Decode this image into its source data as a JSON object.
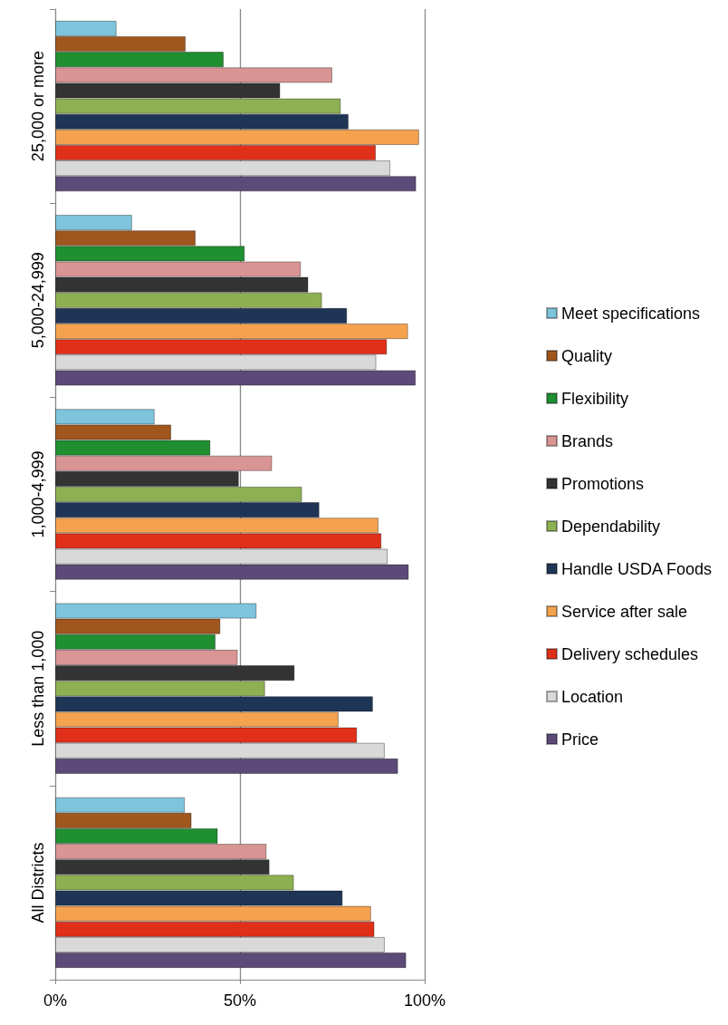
{
  "chart_data": {
    "type": "bar",
    "orientation": "horizontal",
    "categories": [
      "25,000 or more",
      "5,000-24,999",
      "1,000-4,999",
      "Less than 1,000",
      "All Districts"
    ],
    "xlim": [
      0,
      100
    ],
    "xticks": [
      {
        "value": 0,
        "label": "0%"
      },
      {
        "value": 50,
        "label": "50%"
      },
      {
        "value": 100,
        "label": "100%"
      }
    ],
    "grid": "x",
    "legend": "right",
    "series": [
      {
        "name": "Meet specifications",
        "color": "#7ec4dc",
        "values": [
          16.6,
          20.8,
          26.9,
          54.5,
          35.1
        ]
      },
      {
        "name": "Quality",
        "color": "#a0561c",
        "values": [
          35.3,
          38,
          31.4,
          44.7,
          36.9
        ]
      },
      {
        "name": "Flexibility",
        "color": "#1f8f2f",
        "values": [
          45.6,
          51.3,
          42,
          43.4,
          44
        ]
      },
      {
        "name": "Brands",
        "color": "#d99494",
        "values": [
          75,
          66.5,
          58.7,
          49.4,
          57.2
        ]
      },
      {
        "name": "Promotions",
        "color": "#333333",
        "values": [
          60.9,
          68.5,
          49.7,
          64.8,
          58
        ]
      },
      {
        "name": "Dependability",
        "color": "#8db152",
        "values": [
          77.3,
          72.2,
          66.8,
          56.8,
          64.6
        ]
      },
      {
        "name": "Handle USDA Foods",
        "color": "#1f3556",
        "values": [
          79.4,
          79,
          71.5,
          86,
          77.8
        ]
      },
      {
        "name": "Service after sale",
        "color": "#f5a24f",
        "values": [
          98.5,
          95.5,
          87.5,
          76.7,
          85.5
        ]
      },
      {
        "name": "Delivery schedules",
        "color": "#e0301a",
        "values": [
          86.8,
          89.8,
          88.3,
          81.7,
          86.4
        ]
      },
      {
        "name": "Location",
        "color": "#d9d9d9",
        "values": [
          90.7,
          86.9,
          90,
          89.2,
          89.2
        ]
      },
      {
        "name": "Price",
        "color": "#5c4a78",
        "values": [
          97.7,
          97.6,
          95.7,
          92.8,
          95
        ]
      }
    ]
  }
}
